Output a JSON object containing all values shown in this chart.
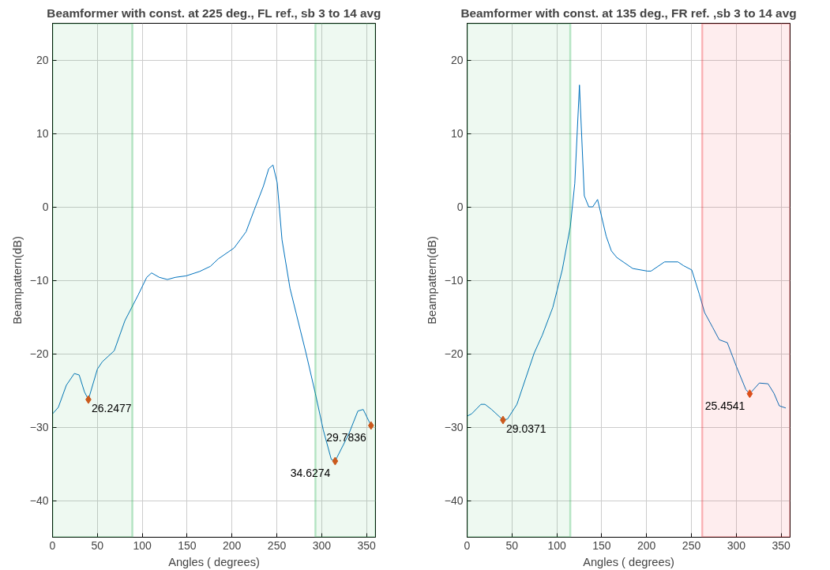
{
  "chart_data": [
    {
      "type": "line",
      "title": "Beamformer with const. at 225 deg., FL ref., sb 3 to 14 avg",
      "xlabel": "Angles ( degrees)",
      "ylabel": "Beampattern(dB)",
      "xlim": [
        0,
        360
      ],
      "ylim": [
        -45,
        25
      ],
      "xticks": [
        0,
        50,
        100,
        150,
        200,
        250,
        300,
        350
      ],
      "yticks": [
        -40,
        -30,
        -20,
        -10,
        0,
        10,
        20
      ],
      "grid": true,
      "series": [
        {
          "color": "#0072bd",
          "x": [
            0,
            6.5,
            15.4,
            24.3,
            29.7,
            35.6,
            40,
            50,
            55.5,
            68.8,
            80.7,
            95.5,
            105,
            110.4,
            119,
            128,
            137,
            149,
            164,
            176,
            184.6,
            202.4,
            215.7,
            224.6,
            235,
            241,
            245.7,
            250.4,
            255.8,
            264.7,
            282.5,
            292.9,
            301.8,
            310.7,
            315,
            330,
            340.4,
            346.3,
            355
          ],
          "values": [
            -28.2,
            -27.3,
            -24.3,
            -22.7,
            -22.9,
            -25.2,
            -26.2477,
            -22.1,
            -21.1,
            -19.6,
            -15.5,
            -12.0,
            -9.6,
            -9.0,
            -9.6,
            -9.9,
            -9.6,
            -9.4,
            -8.8,
            -8.1,
            -7.1,
            -5.6,
            -3.4,
            -0.5,
            2.8,
            5.2,
            5.7,
            3.3,
            -4.5,
            -11.1,
            -19.9,
            -25.4,
            -30.4,
            -34.4,
            -34.6274,
            -31.0,
            -27.8,
            -27.6,
            -29.7836
          ]
        }
      ],
      "annotations": [
        {
          "text": "26.2477",
          "x": 40,
          "y": -26.2477
        },
        {
          "text": "34.6274",
          "x": 315,
          "y": -34.6274
        },
        {
          "text": "29.7836",
          "x": 355,
          "y": -29.7836
        }
      ],
      "bands": [
        {
          "axis": "x",
          "from": 0,
          "to": 89,
          "color": "#22b14c"
        },
        {
          "axis": "x",
          "from": 293,
          "to": 360,
          "color": "#22b14c"
        }
      ]
    },
    {
      "type": "line",
      "title": "Beamformer with const. at 135 deg., FR ref. ,sb 3 to 14 avg",
      "xlabel": "Angles ( degrees)",
      "ylabel": "Beampattern(dB)",
      "xlim": [
        0,
        360
      ],
      "ylim": [
        -45,
        25
      ],
      "xticks": [
        0,
        50,
        100,
        150,
        200,
        250,
        300,
        350
      ],
      "yticks": [
        -40,
        -30,
        -20,
        -10,
        0,
        10,
        20
      ],
      "grid": true,
      "series": [
        {
          "color": "#0072bd",
          "x": [
            0,
            5,
            15.4,
            19.9,
            27.3,
            40,
            45,
            55.5,
            74.8,
            83.7,
            95.5,
            106,
            115,
            120,
            125.2,
            130.6,
            135.6,
            140,
            145.4,
            155,
            160.8,
            166.8,
            184.6,
            200.9,
            205,
            220,
            235,
            241,
            250.4,
            258.8,
            264.7,
            273.6,
            281,
            290,
            300.3,
            310.7,
            315,
            325.7,
            335.4,
            342,
            347.9,
            355.2
          ],
          "values": [
            -28.5,
            -28.2,
            -26.9,
            -26.9,
            -27.6,
            -29.0371,
            -28.9,
            -26.9,
            -19.9,
            -17.5,
            -13.7,
            -8.6,
            -2.7,
            3.2,
            16.6,
            1.5,
            0,
            0,
            1.0,
            -4.0,
            -6.0,
            -6.9,
            -8.4,
            -8.75,
            -8.75,
            -7.5,
            -7.5,
            -8.0,
            -8.6,
            -11.9,
            -14.4,
            -16.4,
            -18.1,
            -18.5,
            -21.8,
            -24.9,
            -25.4541,
            -24.0,
            -24.1,
            -25.4,
            -27.1,
            -27.4
          ]
        }
      ],
      "annotations": [
        {
          "text": "29.0371",
          "x": 40,
          "y": -29.0371
        },
        {
          "text": "25.4541",
          "x": 315,
          "y": -25.4541
        }
      ],
      "bands": [
        {
          "axis": "x",
          "from": 0,
          "to": 115,
          "color": "#22b14c"
        },
        {
          "axis": "x",
          "from": 262,
          "to": 360,
          "color": "#ed1c24"
        }
      ]
    }
  ]
}
